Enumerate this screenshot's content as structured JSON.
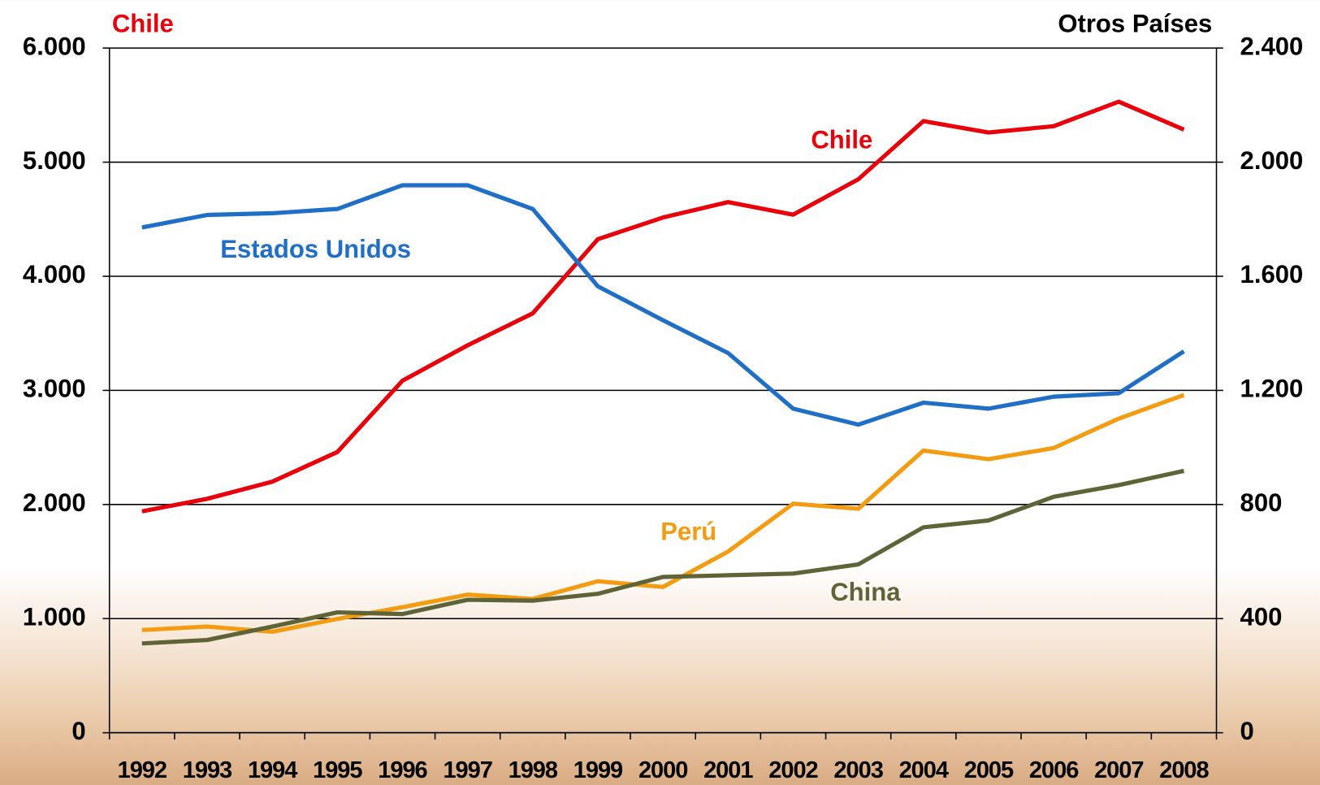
{
  "chart_data": {
    "type": "line",
    "y_label": "Chile",
    "y2_label": "Otros Países",
    "categories": [
      "1992",
      "1993",
      "1994",
      "1995",
      "1996",
      "1997",
      "1998",
      "1999",
      "2000",
      "2001",
      "2002",
      "2003",
      "2004",
      "2005",
      "2006",
      "2007",
      "2008"
    ],
    "series": [
      {
        "name": "Chile",
        "color": "#e8000b",
        "axis": "y",
        "values": [
          1940,
          2050,
          2200,
          2460,
          3085,
          3395,
          3675,
          4325,
          4515,
          4650,
          4540,
          4850,
          5360,
          5260,
          5315,
          5530,
          5285
        ]
      },
      {
        "name": "Estados Unidos",
        "color": "#1f6fc6",
        "axis": "y2",
        "values": [
          1771,
          1815,
          1821,
          1836,
          1919,
          1919,
          1836,
          1565,
          1446,
          1331,
          1136,
          1080,
          1157,
          1136,
          1178,
          1190,
          1337
        ]
      },
      {
        "name": "Perú",
        "color": "#f39c12",
        "axis": "y2",
        "values": [
          360,
          372,
          354,
          399,
          440,
          484,
          469,
          531,
          511,
          635,
          803,
          785,
          989,
          959,
          998,
          1101,
          1184
        ]
      },
      {
        "name": "China",
        "color": "#5f6338",
        "axis": "y2",
        "values": [
          313,
          325,
          372,
          422,
          416,
          466,
          463,
          487,
          546,
          552,
          558,
          590,
          720,
          744,
          827,
          868,
          918
        ]
      }
    ],
    "ylim": [
      0,
      6000
    ],
    "yticks": [
      0,
      {
        "value": 1000,
        "label": "1.000"
      },
      {
        "value": 2000,
        "label": "2.000"
      },
      {
        "value": 3000,
        "label": "3.000"
      },
      {
        "value": 4000,
        "label": "4.000"
      },
      {
        "value": 5000,
        "label": "5.000"
      },
      {
        "value": 6000,
        "label": "6.000"
      }
    ],
    "y2lim": [
      0,
      2400
    ],
    "y2ticks": [
      0,
      400,
      800,
      {
        "value": 1200,
        "label": "1.200"
      },
      {
        "value": 1600,
        "label": "1.600"
      },
      {
        "value": 2000,
        "label": "2.000"
      },
      {
        "value": 2400,
        "label": "2.400"
      }
    ],
    "grid": true
  }
}
